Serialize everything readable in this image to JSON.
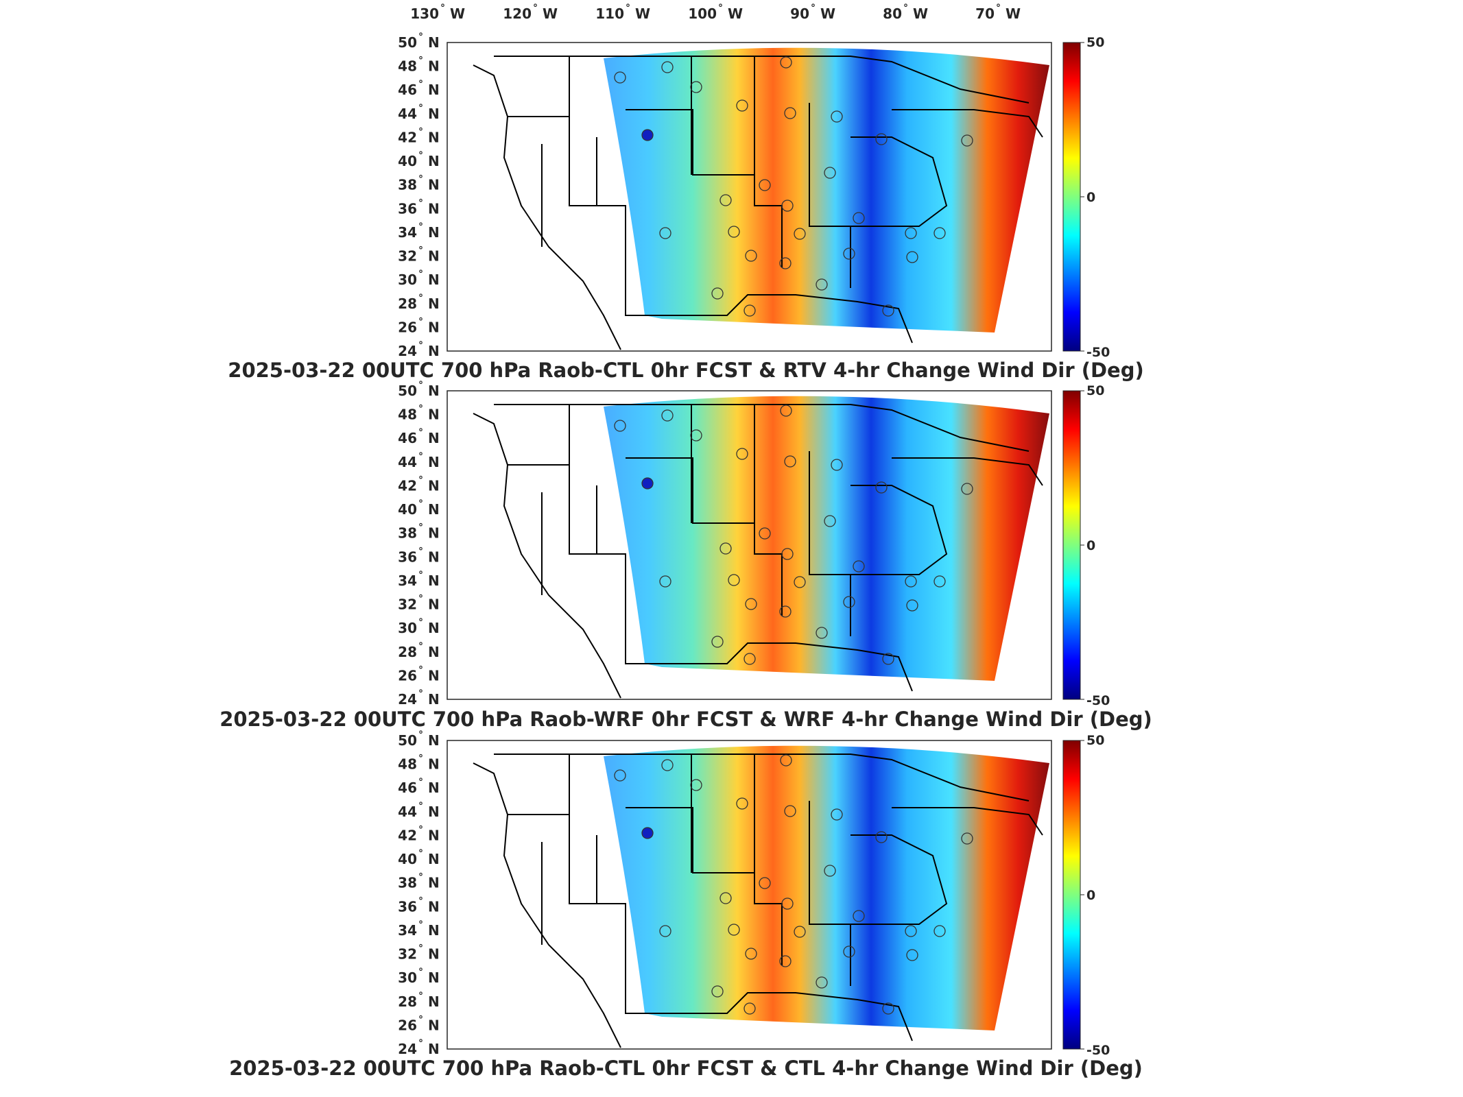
{
  "figure": {
    "lon_ticks": [
      "130",
      "120",
      "110",
      "100",
      "90",
      "80",
      "70"
    ],
    "lon_hemisphere": "W",
    "lat_ticks": [
      "50",
      "48",
      "46",
      "44",
      "42",
      "40",
      "38",
      "36",
      "34",
      "32",
      "30",
      "28",
      "26",
      "24"
    ],
    "lat_hemisphere": "N",
    "degree_symbol": "°",
    "colorbar": {
      "ticks": [
        "50",
        "0",
        "-50"
      ],
      "min": -50,
      "max": 50,
      "colormap": "jet",
      "colors": [
        "#00007f",
        "#0000ff",
        "#007fff",
        "#00ffff",
        "#7fff7f",
        "#ffff00",
        "#ff7f00",
        "#ff0000",
        "#7f0000"
      ]
    },
    "panels": [
      {
        "title": "2025-03-22 00UTC 700 hPa Raob-CTL 0hr FCST & RTV 4-hr Change Wind Dir (Deg)"
      },
      {
        "title": "2025-03-22 00UTC 700 hPa Raob-WRF 0hr FCST & WRF 4-hr Change Wind Dir (Deg)"
      },
      {
        "title": "2025-03-22 00UTC 700 hPa Raob-CTL 0hr FCST & CTL 4-hr Change Wind Dir (Deg)"
      }
    ]
  }
}
